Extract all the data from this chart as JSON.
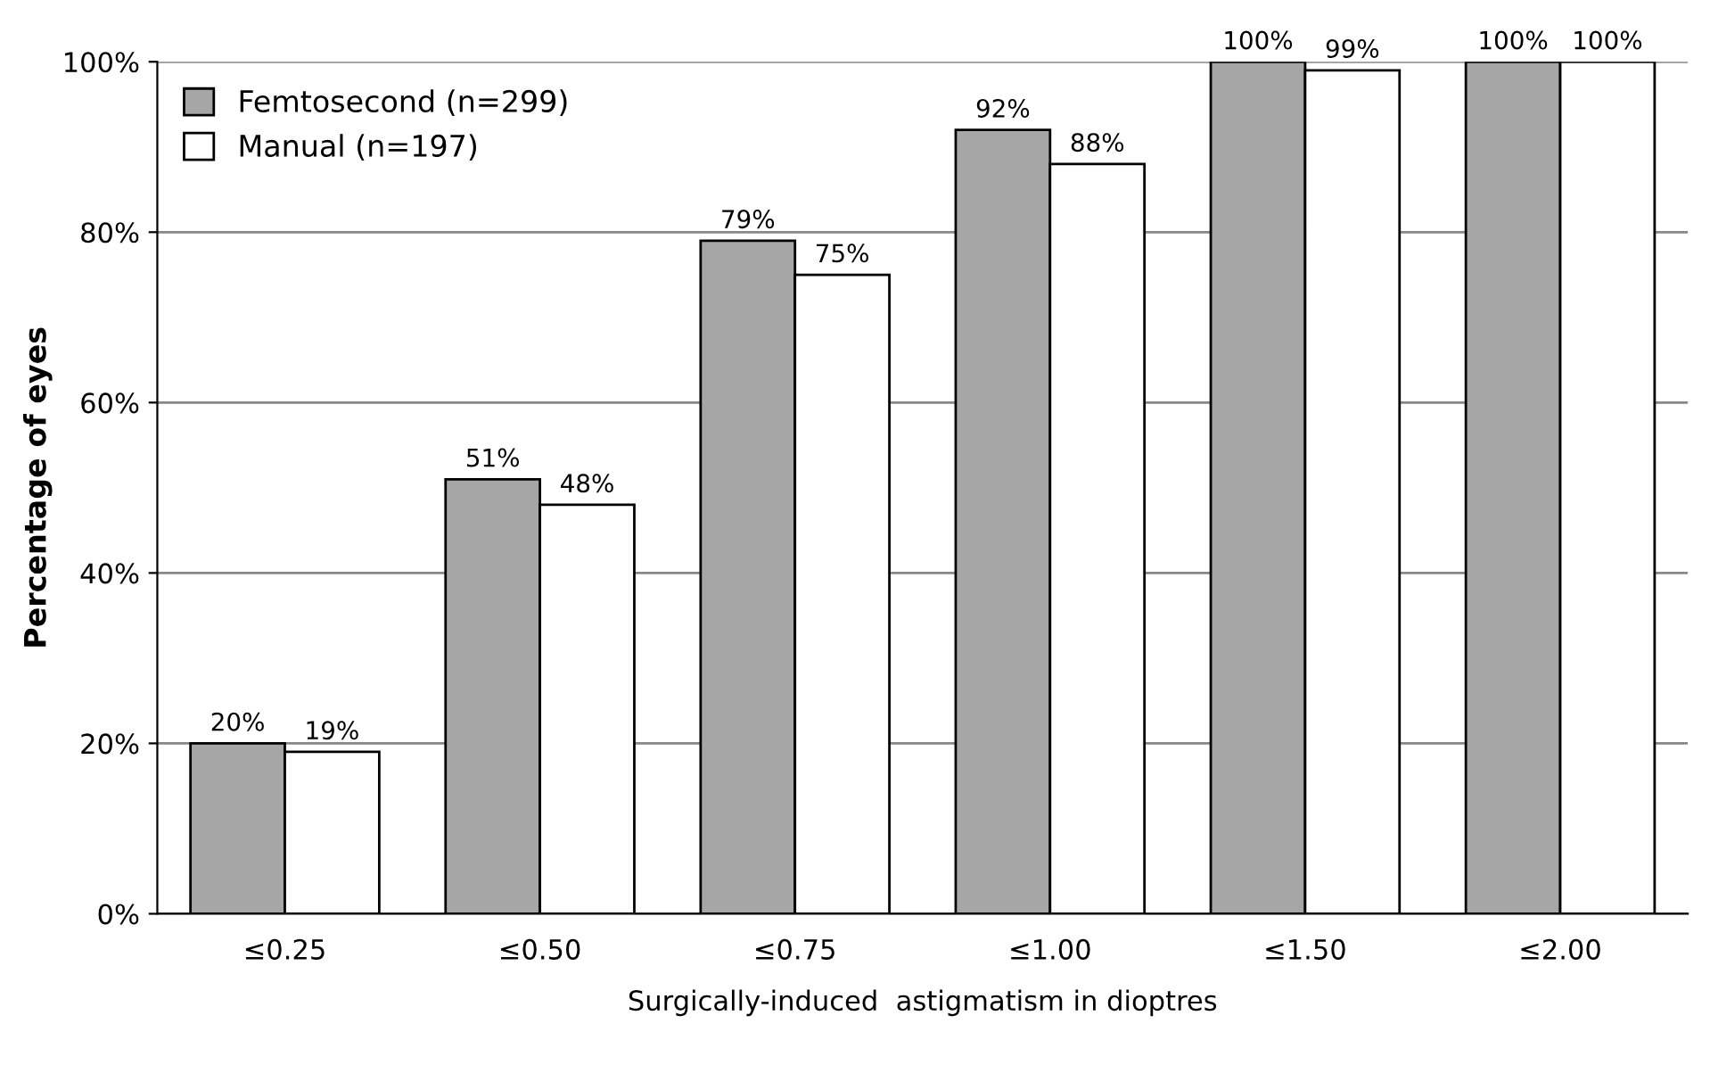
{
  "chart_data": {
    "type": "bar",
    "xlabel": "Surgically-induced  astigmatism in dioptres",
    "ylabel": "Percentage of eyes",
    "categories": [
      "≤0.25",
      "≤0.50",
      "≤0.75",
      "≤1.00",
      "≤1.50",
      "≤2.00"
    ],
    "series": [
      {
        "name": "Femtosecond (n=299)",
        "color": "#a6a6a6",
        "values": [
          20,
          51,
          79,
          92,
          100,
          100
        ],
        "value_labels": [
          "20%",
          "51%",
          "79%",
          "92%",
          "100%",
          "100%"
        ]
      },
      {
        "name": "Manual (n=197)",
        "color": "#ffffff",
        "values": [
          19,
          48,
          75,
          88,
          99,
          100
        ],
        "value_labels": [
          "19%",
          "48%",
          "75%",
          "88%",
          "99%",
          "100%"
        ]
      }
    ],
    "ylim": [
      0,
      100
    ],
    "yticks": [
      {
        "value": 0,
        "label": "0%"
      },
      {
        "value": 20,
        "label": "20%"
      },
      {
        "value": 40,
        "label": "40%"
      },
      {
        "value": 60,
        "label": "60%"
      },
      {
        "value": 80,
        "label": "80%"
      },
      {
        "value": 100,
        "label": "100%"
      }
    ],
    "grid": "y",
    "legend": "top left"
  }
}
